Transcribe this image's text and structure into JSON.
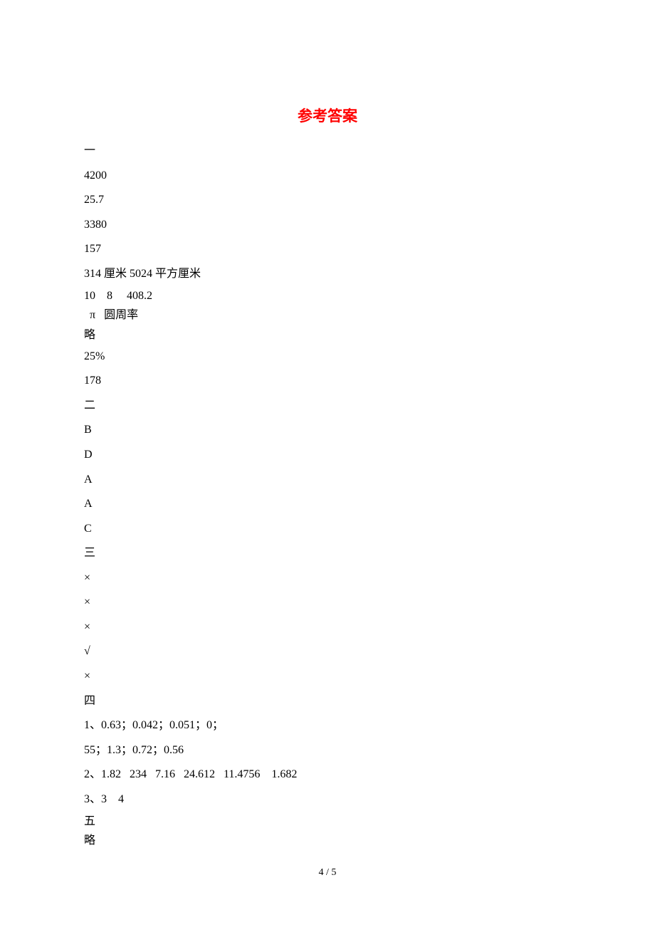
{
  "title": "参考答案",
  "sections": {
    "one": {
      "header": "一",
      "lines": [
        "4200",
        "25.7",
        "3380",
        "157",
        "314 厘米 5024 平方厘米",
        "10    8     408.2",
        "  π   圆周率",
        "略",
        "25%",
        "178"
      ]
    },
    "two": {
      "header": "二",
      "lines": [
        "B",
        "D",
        "A",
        "A",
        "C"
      ]
    },
    "three": {
      "header": "三",
      "lines": [
        "×",
        "×",
        "×",
        "√",
        "×"
      ]
    },
    "four": {
      "header": "四",
      "lines": [
        "1、0.63；0.042；0.051；0；",
        "55；1.3；0.72；0.56",
        "2、1.82   234   7.16   24.612   11.4756    1.682",
        "3、3    4"
      ]
    },
    "five": {
      "header": "五",
      "lines": [
        "略"
      ]
    }
  },
  "footer": "4 / 5",
  "colors": {
    "title_color": "#ff0000",
    "text_color": "#000000",
    "background_color": "#ffffff"
  },
  "typography": {
    "title_fontsize": 21,
    "body_fontsize": 16,
    "footer_fontsize": 14,
    "font_family": "SimSun"
  }
}
